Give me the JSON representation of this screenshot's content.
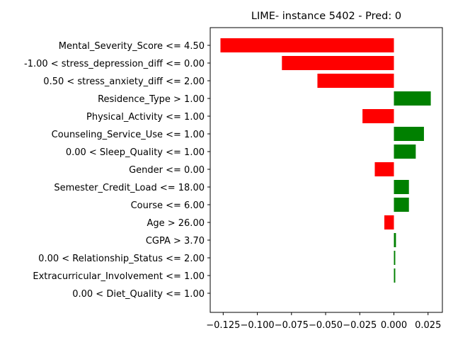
{
  "chart_data": {
    "type": "bar",
    "orientation": "horizontal",
    "title": "LIME- instance 5402 - Pred: 0",
    "xlabel": "",
    "ylabel": "",
    "xlim": [
      -0.1345,
      0.0355
    ],
    "xticks": [
      -0.125,
      -0.1,
      -0.075,
      -0.05,
      -0.025,
      0.0,
      0.025
    ],
    "xtick_labels": [
      "−0.125",
      "−0.100",
      "−0.075",
      "−0.050",
      "−0.025",
      "0.000",
      "0.025"
    ],
    "grid": false,
    "positive_color": "#008000",
    "negative_color": "#ff0000",
    "categories": [
      "Mental_Severity_Score <= 4.50",
      "-1.00 < stress_depression_diff <= 0.00",
      "0.50 < stress_anxiety_diff <= 2.00",
      "Residence_Type > 1.00",
      "Physical_Activity <= 1.00",
      "Counseling_Service_Use <= 1.00",
      "0.00 < Sleep_Quality <= 1.00",
      "Gender <= 0.00",
      "Semester_Credit_Load <= 18.00",
      "Course <= 6.00",
      "Age > 26.00",
      "CGPA > 3.70",
      "0.00 < Relationship_Status <= 2.00",
      "Extracurricular_Involvement <= 1.00",
      "0.00 < Diet_Quality <= 1.00"
    ],
    "values": [
      -0.127,
      -0.082,
      -0.056,
      0.027,
      -0.023,
      0.022,
      0.016,
      -0.014,
      0.011,
      0.011,
      -0.007,
      0.0015,
      0.001,
      0.001,
      0.0
    ]
  }
}
